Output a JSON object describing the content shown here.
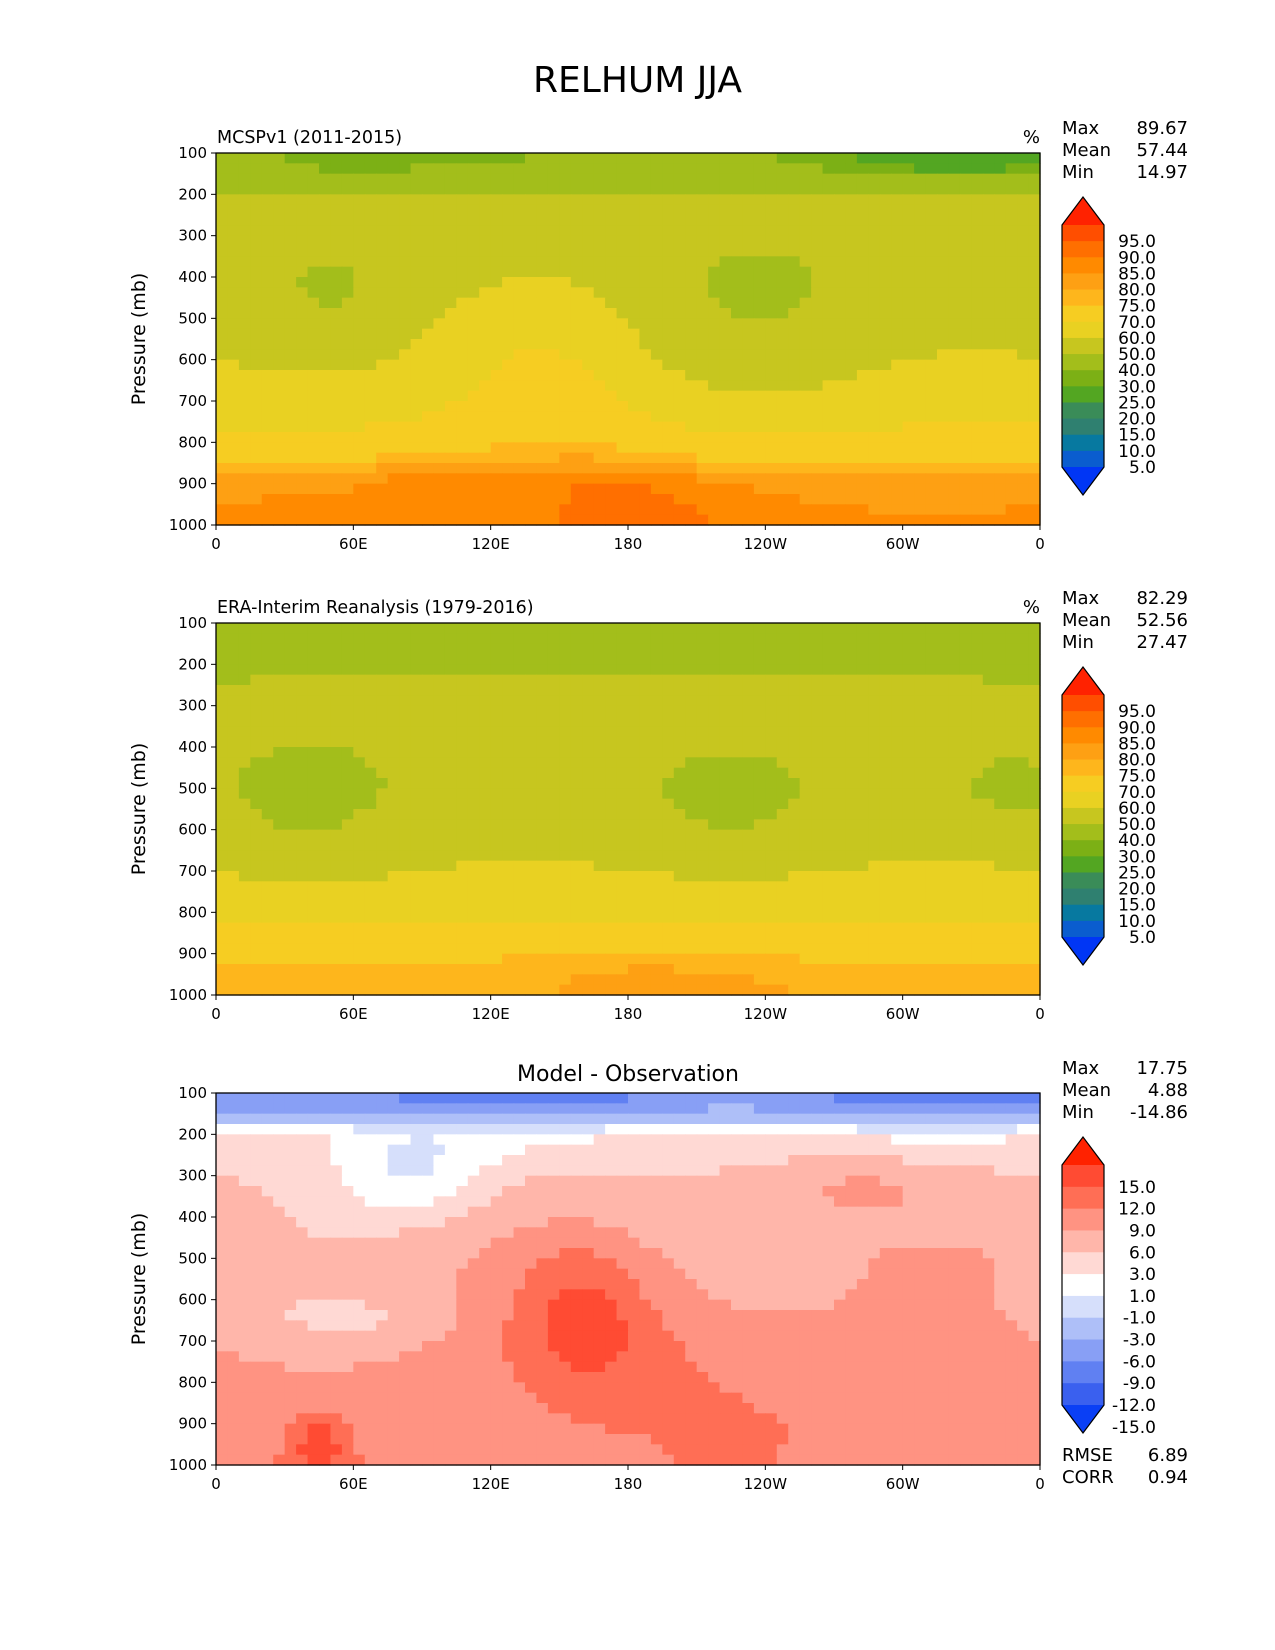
{
  "figure": {
    "title": "RELHUM JJA"
  },
  "chart_data": [
    {
      "type": "heatmap",
      "title": "MCSPv1 (2011-2015)",
      "units": "%",
      "ylabel": "Pressure (mb)",
      "xlabel": "",
      "x_ticks": [
        "0",
        "60E",
        "120E",
        "180",
        "120W",
        "60W",
        "0"
      ],
      "x_tick_values": [
        0,
        60,
        120,
        180,
        240,
        300,
        360
      ],
      "y_ticks": [
        100,
        200,
        300,
        400,
        500,
        600,
        700,
        800,
        900,
        1000
      ],
      "xlim": [
        0,
        360
      ],
      "ylim": [
        1000,
        100
      ],
      "stats": [
        [
          "Max",
          "89.67"
        ],
        [
          "Mean",
          "57.44"
        ],
        [
          "Min",
          "14.97"
        ]
      ],
      "levels": [
        "95.0",
        "90.0",
        "85.0",
        "80.0",
        "75.0",
        "70.0",
        "60.0",
        "50.0",
        "40.0",
        "30.0",
        "25.0",
        "20.0",
        "15.0",
        "10.0",
        "5.0"
      ],
      "colorbar_colors": [
        "#ff2200",
        "#ff4e00",
        "#ff6f00",
        "#ff8a00",
        "#fea013",
        "#feb61c",
        "#f6cd22",
        "#e9d122",
        "#c7c61f",
        "#a3be1b",
        "#7cb015",
        "#53a622",
        "#3a8c58",
        "#2f8070",
        "#0779a0",
        "#0a5dcf",
        "#0036f5"
      ],
      "profile": [
        [
          100,
          30
        ],
        [
          150,
          35
        ],
        [
          200,
          42
        ],
        [
          300,
          45
        ],
        [
          400,
          45
        ],
        [
          500,
          47
        ],
        [
          600,
          50
        ],
        [
          700,
          55
        ],
        [
          800,
          63
        ],
        [
          850,
          70
        ],
        [
          900,
          78
        ],
        [
          950,
          80
        ],
        [
          1000,
          82
        ]
      ],
      "features": [
        {
          "lon": 50,
          "p": 430,
          "dlon": 25,
          "dp": 110,
          "amp": -6
        },
        {
          "lon": 145,
          "p": 620,
          "dlon": 45,
          "dp": 250,
          "amp": 10
        },
        {
          "lon": 240,
          "p": 470,
          "dlon": 60,
          "dp": 260,
          "amp": -6
        },
        {
          "lon": 60,
          "p": 150,
          "dlon": 40,
          "dp": 60,
          "amp": -6
        },
        {
          "lon": 330,
          "p": 120,
          "dlon": 60,
          "dp": 50,
          "amp": -10
        },
        {
          "lon": 180,
          "p": 930,
          "dlon": 45,
          "dp": 120,
          "amp": 6
        },
        {
          "lon": 90,
          "p": 880,
          "dlon": 25,
          "dp": 70,
          "amp": 5
        }
      ]
    },
    {
      "type": "heatmap",
      "title": "ERA-Interim Reanalysis (1979-2016)",
      "units": "%",
      "ylabel": "Pressure (mb)",
      "xlabel": "",
      "x_ticks": [
        "0",
        "60E",
        "120E",
        "180",
        "120W",
        "60W",
        "0"
      ],
      "x_tick_values": [
        0,
        60,
        120,
        180,
        240,
        300,
        360
      ],
      "y_ticks": [
        100,
        200,
        300,
        400,
        500,
        600,
        700,
        800,
        900,
        1000
      ],
      "xlim": [
        0,
        360
      ],
      "ylim": [
        1000,
        100
      ],
      "stats": [
        [
          "Max",
          "82.29"
        ],
        [
          "Mean",
          "52.56"
        ],
        [
          "Min",
          "27.47"
        ]
      ],
      "levels": [
        "95.0",
        "90.0",
        "85.0",
        "80.0",
        "75.0",
        "70.0",
        "60.0",
        "50.0",
        "40.0",
        "30.0",
        "25.0",
        "20.0",
        "15.0",
        "10.0",
        "5.0"
      ],
      "colorbar_colors": [
        "#ff2200",
        "#ff4e00",
        "#ff6f00",
        "#ff8a00",
        "#fea013",
        "#feb61c",
        "#f6cd22",
        "#e9d122",
        "#c7c61f",
        "#a3be1b",
        "#7cb015",
        "#53a622",
        "#3a8c58",
        "#2f8070",
        "#0779a0",
        "#0a5dcf",
        "#0036f5"
      ],
      "profile": [
        [
          100,
          36
        ],
        [
          200,
          38
        ],
        [
          300,
          43
        ],
        [
          400,
          43
        ],
        [
          500,
          42
        ],
        [
          600,
          45
        ],
        [
          700,
          50
        ],
        [
          800,
          56
        ],
        [
          850,
          62
        ],
        [
          900,
          68
        ],
        [
          950,
          72
        ],
        [
          1000,
          74
        ]
      ],
      "features": [
        {
          "lon": 40,
          "p": 520,
          "dlon": 30,
          "dp": 150,
          "amp": -5
        },
        {
          "lon": 225,
          "p": 520,
          "dlon": 30,
          "dp": 110,
          "amp": -5
        },
        {
          "lon": 345,
          "p": 500,
          "dlon": 25,
          "dp": 100,
          "amp": -5
        },
        {
          "lon": 300,
          "p": 320,
          "dlon": 40,
          "dp": 60,
          "amp": 6
        },
        {
          "lon": 150,
          "p": 320,
          "dlon": 60,
          "dp": 80,
          "amp": 6
        },
        {
          "lon": 180,
          "p": 940,
          "dlon": 60,
          "dp": 90,
          "amp": 4
        }
      ]
    },
    {
      "type": "heatmap",
      "title": "Model - Observation",
      "units": "",
      "ylabel": "Pressure (mb)",
      "xlabel": "",
      "x_ticks": [
        "0",
        "60E",
        "120E",
        "180",
        "120W",
        "60W",
        "0"
      ],
      "x_tick_values": [
        0,
        60,
        120,
        180,
        240,
        300,
        360
      ],
      "y_ticks": [
        100,
        200,
        300,
        400,
        500,
        600,
        700,
        800,
        900,
        1000
      ],
      "xlim": [
        0,
        360
      ],
      "ylim": [
        1000,
        100
      ],
      "stats": [
        [
          "Max",
          "17.75"
        ],
        [
          "Mean",
          "4.88"
        ],
        [
          "Min",
          "-14.86"
        ]
      ],
      "extra_stats": [
        [
          "RMSE",
          "6.89"
        ],
        [
          "CORR",
          "0.94"
        ]
      ],
      "levels": [
        "15.0",
        "12.0",
        "9.0",
        "6.0",
        "3.0",
        "1.0",
        "-1.0",
        "-3.0",
        "-6.0",
        "-9.0",
        "-12.0",
        "-15.0"
      ],
      "colorbar_colors": [
        "#ff2200",
        "#ff4b33",
        "#ff6e55",
        "#ff9382",
        "#ffb6aa",
        "#ffd9d4",
        "#ffffff",
        "#d6dffb",
        "#aebff8",
        "#889ff5",
        "#6080f2",
        "#3a60ef",
        "#0a3ff5"
      ],
      "profile": [
        [
          100,
          -10
        ],
        [
          150,
          -6
        ],
        [
          200,
          1
        ],
        [
          300,
          3
        ],
        [
          400,
          4
        ],
        [
          500,
          5
        ],
        [
          600,
          5
        ],
        [
          700,
          6
        ],
        [
          800,
          7
        ],
        [
          900,
          8
        ],
        [
          1000,
          8
        ]
      ],
      "features": [
        {
          "lon": 85,
          "p": 300,
          "dlon": 35,
          "dp": 120,
          "amp": -4
        },
        {
          "lon": 160,
          "p": 640,
          "dlon": 30,
          "dp": 180,
          "amp": 6
        },
        {
          "lon": 210,
          "p": 700,
          "dlon": 60,
          "dp": 200,
          "amp": 3
        },
        {
          "lon": 60,
          "p": 650,
          "dlon": 40,
          "dp": 50,
          "amp": -2
        },
        {
          "lon": 280,
          "p": 330,
          "dlon": 40,
          "dp": 70,
          "amp": 3
        },
        {
          "lon": 45,
          "p": 950,
          "dlon": 10,
          "dp": 60,
          "amp": 6
        }
      ]
    }
  ]
}
